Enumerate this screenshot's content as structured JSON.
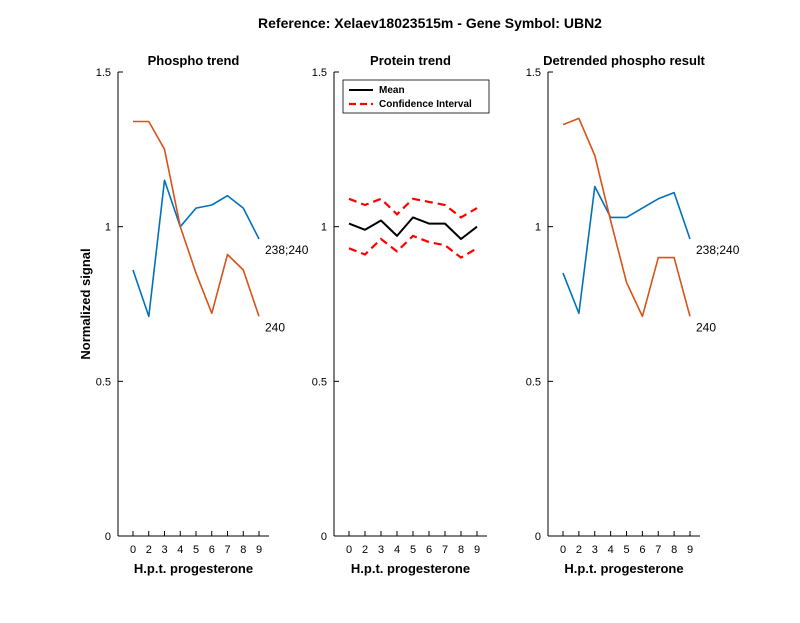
{
  "figure_title": "Reference:  Xelaev18023515m - Gene Symbol:  UBN2",
  "colors": {
    "series_blue": "#0072BD",
    "series_orange": "#D95319",
    "mean": "#000000",
    "ci": "#FF0000",
    "axes": "#000000"
  },
  "chart_data": [
    {
      "type": "line",
      "title": "Phospho trend",
      "xlabel": "H.p.t. progesterone",
      "ylabel": "Normalized signal",
      "categories": [
        "0",
        "2",
        "3",
        "4",
        "5",
        "6",
        "7",
        "8",
        "9"
      ],
      "ylim": [
        0,
        1.5
      ],
      "yticks": [
        "0",
        "0.5",
        "1",
        "1.5"
      ],
      "series": [
        {
          "name": "238;240",
          "color": "series_blue",
          "values": [
            0.86,
            0.71,
            1.15,
            1.0,
            1.06,
            1.07,
            1.1,
            1.06,
            0.96
          ]
        },
        {
          "name": "240",
          "color": "series_orange",
          "values": [
            1.34,
            1.34,
            1.25,
            1.0,
            0.85,
            0.72,
            0.91,
            0.86,
            0.71
          ]
        }
      ]
    },
    {
      "type": "line",
      "title": "Protein trend",
      "xlabel": "H.p.t. progesterone",
      "ylabel": "",
      "categories": [
        "0",
        "2",
        "3",
        "4",
        "5",
        "6",
        "7",
        "8",
        "9"
      ],
      "ylim": [
        0,
        1.5
      ],
      "yticks": [
        "0",
        "0.5",
        "1",
        "1.5"
      ],
      "legend": {
        "placement": "top-right",
        "mean_label": "Mean",
        "ci_label": "Confidence Interval"
      },
      "mean": [
        1.01,
        0.99,
        1.02,
        0.97,
        1.03,
        1.01,
        1.01,
        0.96,
        1.0
      ],
      "ci_upper": [
        1.09,
        1.07,
        1.09,
        1.04,
        1.09,
        1.08,
        1.07,
        1.03,
        1.06
      ],
      "ci_lower": [
        0.93,
        0.91,
        0.96,
        0.92,
        0.97,
        0.95,
        0.94,
        0.9,
        0.93
      ]
    },
    {
      "type": "line",
      "title": "Detrended phospho result",
      "xlabel": "H.p.t. progesterone",
      "ylabel": "",
      "categories": [
        "0",
        "2",
        "3",
        "4",
        "5",
        "6",
        "7",
        "8",
        "9"
      ],
      "ylim": [
        0,
        1.5
      ],
      "yticks": [
        "0",
        "0.5",
        "1",
        "1.5"
      ],
      "series": [
        {
          "name": "238;240",
          "color": "series_blue",
          "values": [
            0.85,
            0.72,
            1.13,
            1.03,
            1.03,
            1.06,
            1.09,
            1.11,
            0.96
          ]
        },
        {
          "name": "240",
          "color": "series_orange",
          "values": [
            1.33,
            1.35,
            1.23,
            1.02,
            0.82,
            0.71,
            0.9,
            0.9,
            0.71
          ]
        }
      ]
    }
  ]
}
